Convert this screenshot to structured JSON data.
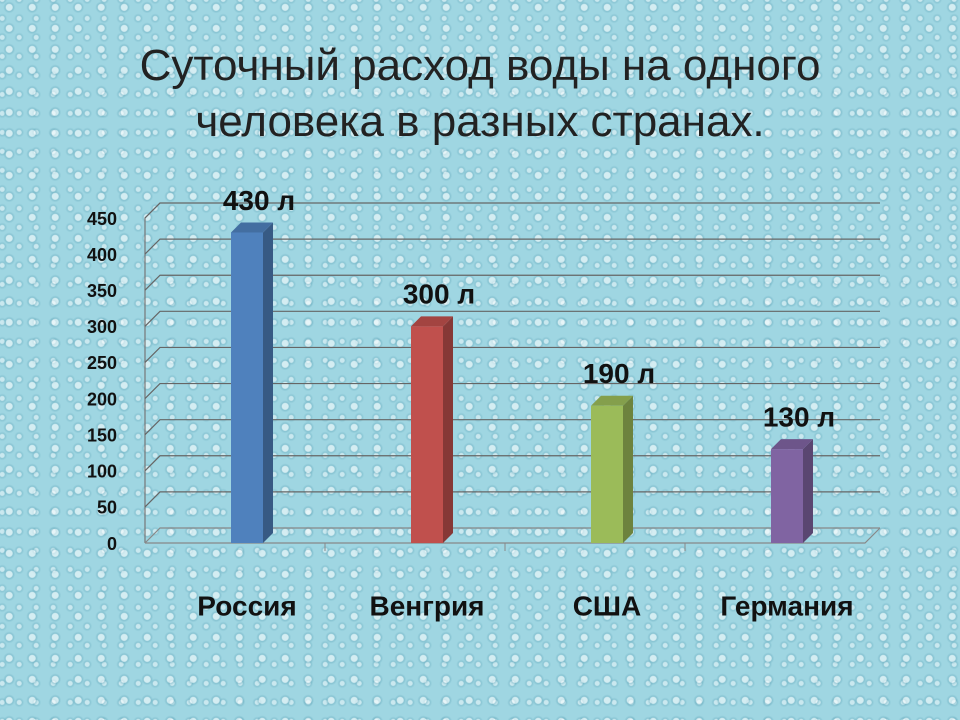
{
  "chart_data": {
    "type": "bar3d",
    "title": "Суточный расход  воды на одного человека в разных странах.",
    "categories": [
      "Россия",
      "Венгрия",
      "США",
      "Германия"
    ],
    "values": [
      430,
      300,
      190,
      130
    ],
    "value_labels": [
      "430 л",
      "300 л",
      "190 л",
      "130 л"
    ],
    "colors": [
      "#4f81bd",
      "#c0504d",
      "#9bbb59",
      "#8064a2"
    ],
    "ylim": [
      0,
      450
    ],
    "yticks": [
      0,
      50,
      100,
      150,
      200,
      250,
      300,
      350,
      400,
      450
    ],
    "grid": true
  }
}
